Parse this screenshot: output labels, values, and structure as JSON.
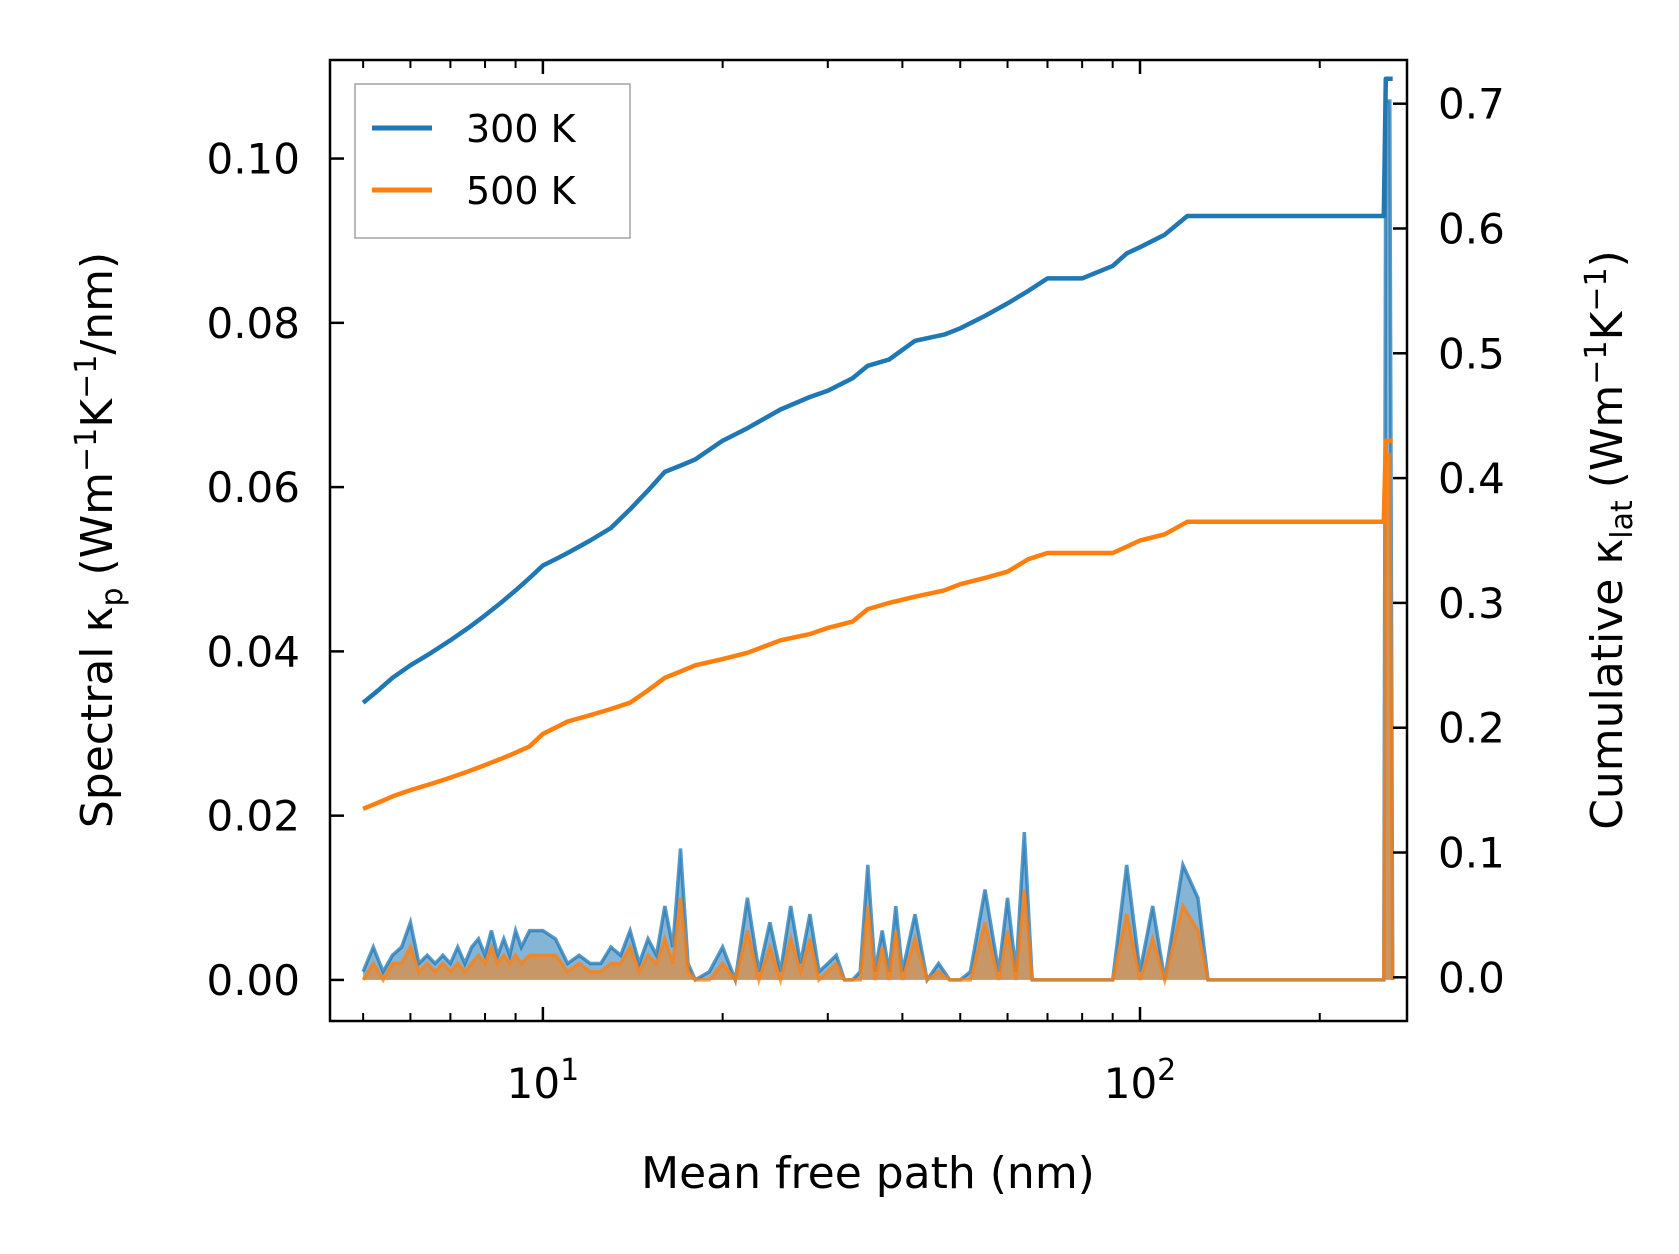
{
  "chart_data": {
    "type": "line",
    "xlabel": "Mean free path (nm)",
    "ylabel_left": "Spectral κ",
    "ylabel_left_sub": "p",
    "ylabel_left_unit": "(Wm",
    "ylabel_left_unit_exp1": "−1",
    "ylabel_left_unit_mid": "K",
    "ylabel_left_unit_exp2": "−1",
    "ylabel_left_unit_end": "/nm)",
    "ylabel_right": "Cumulative κ",
    "ylabel_right_sub": "lat",
    "ylabel_right_unit": "(Wm",
    "ylabel_right_unit_exp1": "−1",
    "ylabel_right_unit_mid": "K",
    "ylabel_right_unit_exp2": "−1",
    "ylabel_right_unit_end": ")",
    "x_scale": "log",
    "xlim": [
      4.4,
      280
    ],
    "ylim_left": [
      -0.005,
      0.112
    ],
    "ylim_right": [
      -0.035,
      0.735
    ],
    "x_ticks": [
      {
        "value": 10,
        "base": "10",
        "exp": "1"
      },
      {
        "value": 100,
        "base": "10",
        "exp": "2"
      }
    ],
    "y_ticks_left": [
      "0.00",
      "0.02",
      "0.04",
      "0.06",
      "0.08",
      "0.10"
    ],
    "y_ticks_right": [
      "0.0",
      "0.1",
      "0.2",
      "0.3",
      "0.4",
      "0.5",
      "0.6",
      "0.7"
    ],
    "grid": false,
    "legend_position": "top-left",
    "colors": {
      "300 K": "#1f77b4",
      "500 K": "#ff7f0e"
    },
    "series": [
      {
        "name": "300 K",
        "axis": "right",
        "kind": "cumulative",
        "x": [
          5.0,
          5.3,
          5.6,
          6.0,
          6.5,
          7.0,
          7.5,
          8.0,
          8.5,
          9.0,
          9.5,
          10.0,
          10.5,
          11.0,
          12.0,
          13.0,
          14.0,
          15.0,
          16.0,
          17.0,
          18.0,
          20.0,
          22.0,
          25.0,
          28.0,
          30.0,
          33.0,
          35.0,
          38.0,
          42.0,
          47.0,
          50.0,
          55.0,
          60.0,
          65.0,
          70.0,
          80.0,
          90.0,
          95.0,
          100.0,
          110.0,
          120.0,
          150.0,
          200.0,
          256.0,
          258.0,
          265.0
        ],
        "y": [
          0.22,
          0.23,
          0.24,
          0.25,
          0.26,
          0.27,
          0.28,
          0.29,
          0.3,
          0.31,
          0.32,
          0.33,
          0.335,
          0.34,
          0.35,
          0.36,
          0.375,
          0.39,
          0.405,
          0.41,
          0.415,
          0.43,
          0.44,
          0.455,
          0.465,
          0.47,
          0.48,
          0.49,
          0.495,
          0.51,
          0.515,
          0.52,
          0.53,
          0.54,
          0.55,
          0.56,
          0.56,
          0.57,
          0.58,
          0.585,
          0.595,
          0.61,
          0.61,
          0.61,
          0.61,
          0.72,
          0.72
        ]
      },
      {
        "name": "500 K",
        "axis": "right",
        "kind": "cumulative",
        "x": [
          5.0,
          5.3,
          5.6,
          6.0,
          6.5,
          7.0,
          7.5,
          8.0,
          8.5,
          9.0,
          9.5,
          10.0,
          10.5,
          11.0,
          12.0,
          13.0,
          14.0,
          15.0,
          16.0,
          17.0,
          18.0,
          20.0,
          22.0,
          25.0,
          28.0,
          30.0,
          33.0,
          35.0,
          38.0,
          42.0,
          47.0,
          50.0,
          55.0,
          60.0,
          65.0,
          70.0,
          80.0,
          90.0,
          95.0,
          100.0,
          110.0,
          120.0,
          150.0,
          200.0,
          256.0,
          258.0,
          265.0
        ],
        "y": [
          0.135,
          0.14,
          0.145,
          0.15,
          0.155,
          0.16,
          0.165,
          0.17,
          0.175,
          0.18,
          0.185,
          0.195,
          0.2,
          0.205,
          0.21,
          0.215,
          0.22,
          0.23,
          0.24,
          0.245,
          0.25,
          0.255,
          0.26,
          0.27,
          0.275,
          0.28,
          0.285,
          0.295,
          0.3,
          0.305,
          0.31,
          0.315,
          0.32,
          0.325,
          0.335,
          0.34,
          0.34,
          0.34,
          0.345,
          0.35,
          0.355,
          0.365,
          0.365,
          0.365,
          0.365,
          0.43,
          0.43
        ]
      },
      {
        "name": "300 K",
        "axis": "left",
        "kind": "spectral",
        "x": [
          5.0,
          5.2,
          5.4,
          5.6,
          5.8,
          6.0,
          6.2,
          6.4,
          6.6,
          6.8,
          7.0,
          7.2,
          7.4,
          7.6,
          7.8,
          8.0,
          8.2,
          8.4,
          8.6,
          8.8,
          9.0,
          9.2,
          9.5,
          10.0,
          10.5,
          11.0,
          11.5,
          12.0,
          12.5,
          13.0,
          13.5,
          14.0,
          14.5,
          15.0,
          15.5,
          16.0,
          16.5,
          17.0,
          17.5,
          18.0,
          19.0,
          20.0,
          21.0,
          22.0,
          23.0,
          24.0,
          25.0,
          26.0,
          27.0,
          28.0,
          29.0,
          30.0,
          31.0,
          32.0,
          33.0,
          34.0,
          35.0,
          36.0,
          37.0,
          38.0,
          39.0,
          40.0,
          42.0,
          44.0,
          46.0,
          48.0,
          50.0,
          52.0,
          55.0,
          58.0,
          60.0,
          62.0,
          64.0,
          66.0,
          68.0,
          70.0,
          80.0,
          90.0,
          95.0,
          100.0,
          105.0,
          110.0,
          118.0,
          125.0,
          130.0,
          200.0,
          256.0,
          258.0,
          262.0,
          265.0
        ],
        "y": [
          0.001,
          0.004,
          0.001,
          0.003,
          0.004,
          0.007,
          0.002,
          0.003,
          0.002,
          0.003,
          0.002,
          0.004,
          0.002,
          0.004,
          0.005,
          0.003,
          0.006,
          0.003,
          0.005,
          0.003,
          0.006,
          0.004,
          0.006,
          0.006,
          0.005,
          0.002,
          0.003,
          0.002,
          0.002,
          0.004,
          0.003,
          0.006,
          0.002,
          0.005,
          0.003,
          0.009,
          0.004,
          0.016,
          0.002,
          0.0,
          0.001,
          0.004,
          0.0,
          0.01,
          0.001,
          0.007,
          0.001,
          0.009,
          0.002,
          0.008,
          0.001,
          0.002,
          0.003,
          0.0,
          0.0,
          0.001,
          0.014,
          0.001,
          0.006,
          0.001,
          0.009,
          0.001,
          0.008,
          0.0,
          0.002,
          0.0,
          0.0,
          0.001,
          0.011,
          0.001,
          0.01,
          0.001,
          0.018,
          0.0,
          0.0,
          0.0,
          0.0,
          0.0,
          0.014,
          0.001,
          0.009,
          0.0,
          0.014,
          0.01,
          0.0,
          0.0,
          0.0,
          0.107,
          0.107,
          0.0
        ]
      },
      {
        "name": "500 K",
        "axis": "left",
        "kind": "spectral",
        "x": [
          5.0,
          5.2,
          5.4,
          5.6,
          5.8,
          6.0,
          6.2,
          6.4,
          6.6,
          6.8,
          7.0,
          7.2,
          7.4,
          7.6,
          7.8,
          8.0,
          8.2,
          8.4,
          8.6,
          8.8,
          9.0,
          9.2,
          9.5,
          10.0,
          10.5,
          11.0,
          11.5,
          12.0,
          12.5,
          13.0,
          13.5,
          14.0,
          14.5,
          15.0,
          15.5,
          16.0,
          16.5,
          17.0,
          17.5,
          18.0,
          19.0,
          20.0,
          21.0,
          22.0,
          23.0,
          24.0,
          25.0,
          26.0,
          27.0,
          28.0,
          29.0,
          30.0,
          31.0,
          32.0,
          33.0,
          34.0,
          35.0,
          36.0,
          37.0,
          38.0,
          39.0,
          40.0,
          42.0,
          44.0,
          46.0,
          48.0,
          50.0,
          52.0,
          55.0,
          58.0,
          60.0,
          62.0,
          64.0,
          66.0,
          68.0,
          70.0,
          80.0,
          90.0,
          95.0,
          100.0,
          105.0,
          110.0,
          118.0,
          125.0,
          130.0,
          200.0,
          256.0,
          258.0,
          262.0,
          265.0
        ],
        "y": [
          0.0,
          0.002,
          0.0,
          0.002,
          0.002,
          0.004,
          0.001,
          0.002,
          0.001,
          0.002,
          0.001,
          0.002,
          0.001,
          0.002,
          0.003,
          0.002,
          0.004,
          0.002,
          0.003,
          0.002,
          0.003,
          0.002,
          0.003,
          0.003,
          0.003,
          0.001,
          0.002,
          0.001,
          0.001,
          0.002,
          0.002,
          0.004,
          0.001,
          0.003,
          0.002,
          0.005,
          0.002,
          0.01,
          0.001,
          0.0,
          0.0,
          0.002,
          0.0,
          0.006,
          0.0,
          0.004,
          0.0,
          0.005,
          0.001,
          0.005,
          0.0,
          0.001,
          0.002,
          0.0,
          0.0,
          0.0,
          0.009,
          0.0,
          0.004,
          0.0,
          0.006,
          0.0,
          0.005,
          0.0,
          0.001,
          0.0,
          0.0,
          0.0,
          0.007,
          0.0,
          0.006,
          0.0,
          0.011,
          0.0,
          0.0,
          0.0,
          0.0,
          0.0,
          0.008,
          0.0,
          0.005,
          0.0,
          0.009,
          0.006,
          0.0,
          0.0,
          0.0,
          0.064,
          0.064,
          0.0
        ]
      }
    ]
  }
}
